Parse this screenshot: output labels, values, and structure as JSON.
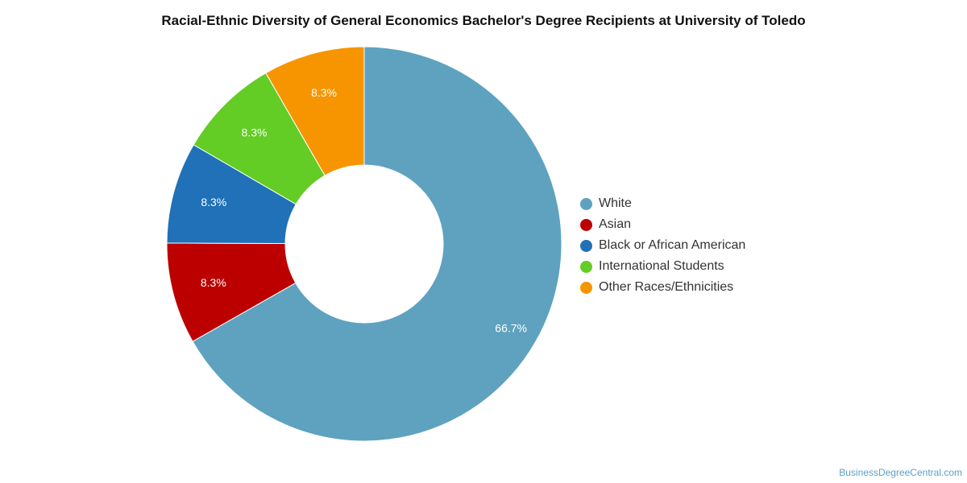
{
  "chart_data": {
    "type": "pie",
    "title": "Racial-Ethnic Diversity of General Economics Bachelor's Degree Recipients at University of Toledo",
    "donut": true,
    "legend_position": "right",
    "slices": [
      {
        "name": "White",
        "value": 66.7,
        "label": "66.7%",
        "color": "#5ea2c0"
      },
      {
        "name": "Asian",
        "value": 8.3,
        "label": "8.3%",
        "color": "#bc0000"
      },
      {
        "name": "Black or African American",
        "value": 8.3,
        "label": "8.3%",
        "color": "#2071b7"
      },
      {
        "name": "International Students",
        "value": 8.3,
        "label": "8.3%",
        "color": "#63cc25"
      },
      {
        "name": "Other Races/Ethnicities",
        "value": 8.3,
        "label": "8.3%",
        "color": "#f79500"
      }
    ]
  },
  "watermark": "BusinessDegreeCentral.com"
}
